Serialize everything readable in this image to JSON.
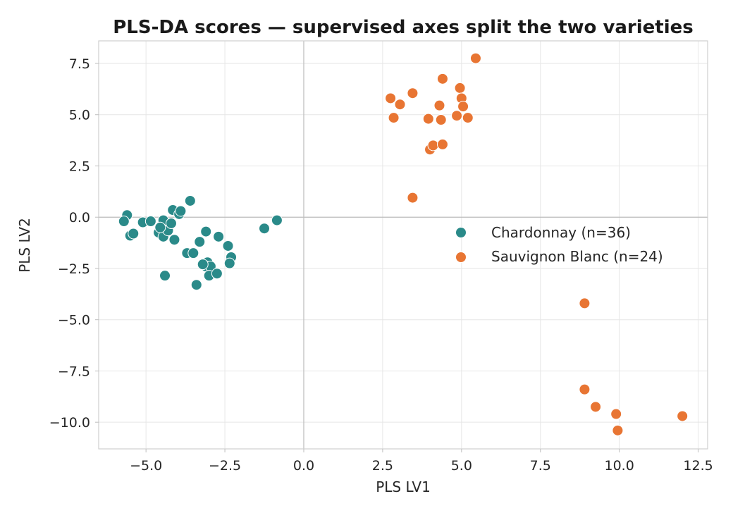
{
  "chart_data": {
    "type": "scatter",
    "title": "PLS-DA scores — supervised axes split the two varieties",
    "xlabel": "PLS LV1",
    "ylabel": "PLS LV2",
    "xlim": [
      -6.5,
      12.8
    ],
    "ylim": [
      -11.3,
      8.6
    ],
    "xticks": [
      -5.0,
      -2.5,
      0.0,
      2.5,
      5.0,
      7.5,
      10.0,
      12.5
    ],
    "yticks": [
      7.5,
      5.0,
      2.5,
      0.0,
      -2.5,
      -5.0,
      -7.5,
      -10.0
    ],
    "xtick_labels": [
      "−5.0",
      "−2.5",
      "0.0",
      "2.5",
      "5.0",
      "7.5",
      "10.0",
      "12.5"
    ],
    "ytick_labels": [
      "7.5",
      "5.0",
      "2.5",
      "0.0",
      "−2.5",
      "−5.0",
      "−7.5",
      "−10.0"
    ],
    "grid": true,
    "legend_position": "center-right",
    "series": [
      {
        "name": "Chardonnay (n=36)",
        "color": "#2a8a89",
        "points": [
          [
            -5.6,
            0.1
          ],
          [
            -5.7,
            -0.2
          ],
          [
            -5.5,
            -0.9
          ],
          [
            -5.4,
            -0.8
          ],
          [
            -5.1,
            -0.25
          ],
          [
            -4.85,
            -0.2
          ],
          [
            -4.6,
            -0.75
          ],
          [
            -4.5,
            -0.4
          ],
          [
            -4.45,
            -0.95
          ],
          [
            -4.45,
            -0.15
          ],
          [
            -4.3,
            -0.65
          ],
          [
            -4.2,
            -0.3
          ],
          [
            -4.15,
            0.35
          ],
          [
            -4.1,
            -1.1
          ],
          [
            -3.95,
            0.15
          ],
          [
            -3.9,
            0.3
          ],
          [
            -3.6,
            0.8
          ],
          [
            -3.7,
            -1.75
          ],
          [
            -3.5,
            -1.75
          ],
          [
            -3.4,
            -3.3
          ],
          [
            -3.3,
            -1.2
          ],
          [
            -3.1,
            -0.7
          ],
          [
            -3.05,
            -2.2
          ],
          [
            -3.1,
            -2.4
          ],
          [
            -2.95,
            -2.4
          ],
          [
            -3.0,
            -2.85
          ],
          [
            -2.75,
            -2.75
          ],
          [
            -2.7,
            -0.95
          ],
          [
            -2.4,
            -1.4
          ],
          [
            -2.3,
            -1.95
          ],
          [
            -2.35,
            -2.25
          ],
          [
            -4.4,
            -2.85
          ],
          [
            -1.25,
            -0.55
          ],
          [
            -0.85,
            -0.15
          ],
          [
            -4.55,
            -0.5
          ],
          [
            -3.2,
            -2.3
          ]
        ]
      },
      {
        "name": "Sauvignon Blanc (n=24)",
        "color": "#e87533",
        "points": [
          [
            2.75,
            5.8
          ],
          [
            2.85,
            4.85
          ],
          [
            3.05,
            5.5
          ],
          [
            3.45,
            6.05
          ],
          [
            3.45,
            0.95
          ],
          [
            3.95,
            4.8
          ],
          [
            4.0,
            3.3
          ],
          [
            4.1,
            3.5
          ],
          [
            4.3,
            5.45
          ],
          [
            4.35,
            4.75
          ],
          [
            4.4,
            6.75
          ],
          [
            4.4,
            3.55
          ],
          [
            4.95,
            6.3
          ],
          [
            4.85,
            4.95
          ],
          [
            5.0,
            5.8
          ],
          [
            5.05,
            5.4
          ],
          [
            5.2,
            4.85
          ],
          [
            5.45,
            7.75
          ],
          [
            8.9,
            -4.2
          ],
          [
            8.9,
            -8.4
          ],
          [
            9.25,
            -9.25
          ],
          [
            9.9,
            -9.6
          ],
          [
            9.95,
            -10.4
          ],
          [
            12.0,
            -9.7
          ]
        ]
      }
    ]
  }
}
